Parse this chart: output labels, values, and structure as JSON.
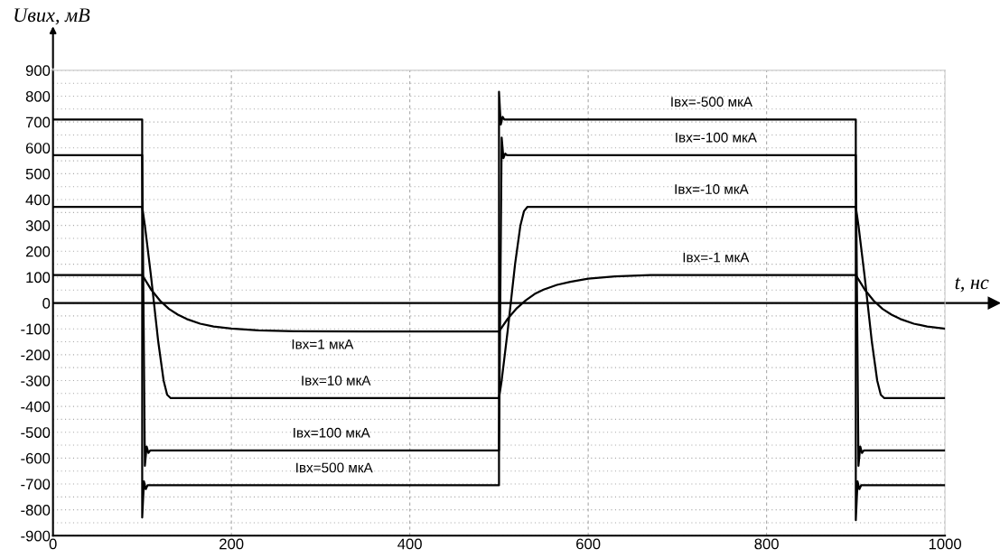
{
  "chart_data": {
    "type": "line",
    "xlabel": "t, нс",
    "ylabel": "Uвих, мВ",
    "xlim": [
      0,
      1000
    ],
    "xticks": [
      0,
      200,
      400,
      600,
      800,
      1000
    ],
    "ylim": [
      -900,
      900
    ],
    "yticks": [
      -900,
      -800,
      -700,
      -600,
      -500,
      -400,
      -300,
      -200,
      -100,
      0,
      100,
      200,
      300,
      400,
      500,
      600,
      700,
      800,
      900
    ],
    "grid": true,
    "line_style": "solid",
    "ref_lines": [
      {
        "axis": "y",
        "value": 0,
        "color": "#000000"
      }
    ],
    "series": [
      {
        "color": "#000000",
        "x": [
          0,
          100,
          100,
          102,
          104,
          106,
          500,
          500,
          502,
          504,
          506,
          900,
          900,
          902,
          904,
          906,
          1000
        ],
        "values": [
          710,
          710,
          -830,
          -690,
          -720,
          -705,
          -705,
          817,
          690,
          720,
          710,
          710,
          -840,
          -690,
          -720,
          -705,
          -705
        ]
      },
      {
        "color": "#000000",
        "x": [
          0,
          100,
          103,
          105,
          107,
          109,
          500,
          503,
          505,
          507,
          509,
          900,
          903,
          905,
          907,
          909,
          1000
        ],
        "values": [
          572,
          572,
          -630,
          -555,
          -580,
          -570,
          -570,
          640,
          560,
          578,
          572,
          572,
          -630,
          -555,
          -580,
          -570,
          -570
        ]
      },
      {
        "color": "#000000",
        "x": [
          0,
          100,
          103,
          110,
          118,
          124,
          128,
          132,
          140,
          500,
          503,
          510,
          518,
          524,
          528,
          532,
          900,
          903,
          910,
          918,
          924,
          928,
          932,
          1000
        ],
        "values": [
          372,
          372,
          300,
          100,
          -150,
          -300,
          -355,
          -368,
          -368,
          -368,
          -300,
          -100,
          150,
          300,
          355,
          372,
          372,
          300,
          100,
          -150,
          -300,
          -355,
          -368,
          -368
        ]
      },
      {
        "color": "#000000",
        "x": [
          0,
          100,
          110,
          120,
          130,
          140,
          150,
          165,
          180,
          200,
          230,
          270,
          350,
          500,
          510,
          520,
          530,
          540,
          550,
          565,
          580,
          600,
          630,
          670,
          750,
          900,
          910,
          920,
          930,
          940,
          950,
          965,
          980,
          1000
        ],
        "values": [
          108,
          108,
          52,
          9,
          -23,
          -45,
          -62,
          -80,
          -91,
          -99,
          -106,
          -109,
          -110,
          -110,
          -60,
          -20,
          10,
          35,
          52,
          70,
          82,
          94,
          103,
          108,
          108,
          108,
          52,
          9,
          -23,
          -45,
          -62,
          -80,
          -91,
          -99
        ]
      }
    ],
    "annotations": [
      {
        "text": "Iвх=-500 мкА",
        "x": 738,
        "y": 710
      },
      {
        "text": "Iвх=-100 мкА",
        "x": 743,
        "y": 572
      },
      {
        "text": "Iвх=-10 мкА",
        "x": 738,
        "y": 372
      },
      {
        "text": "Iвх=-1 мкА",
        "x": 743,
        "y": 108
      },
      {
        "text": "Iвх=1 мкА",
        "x": 302,
        "y": -110
      },
      {
        "text": "Iвх=10 мкА",
        "x": 317,
        "y": -368
      },
      {
        "text": "Iвх=100 мкА",
        "x": 312,
        "y": -570
      },
      {
        "text": "Iвх=500 мкА",
        "x": 315,
        "y": -705
      }
    ]
  }
}
